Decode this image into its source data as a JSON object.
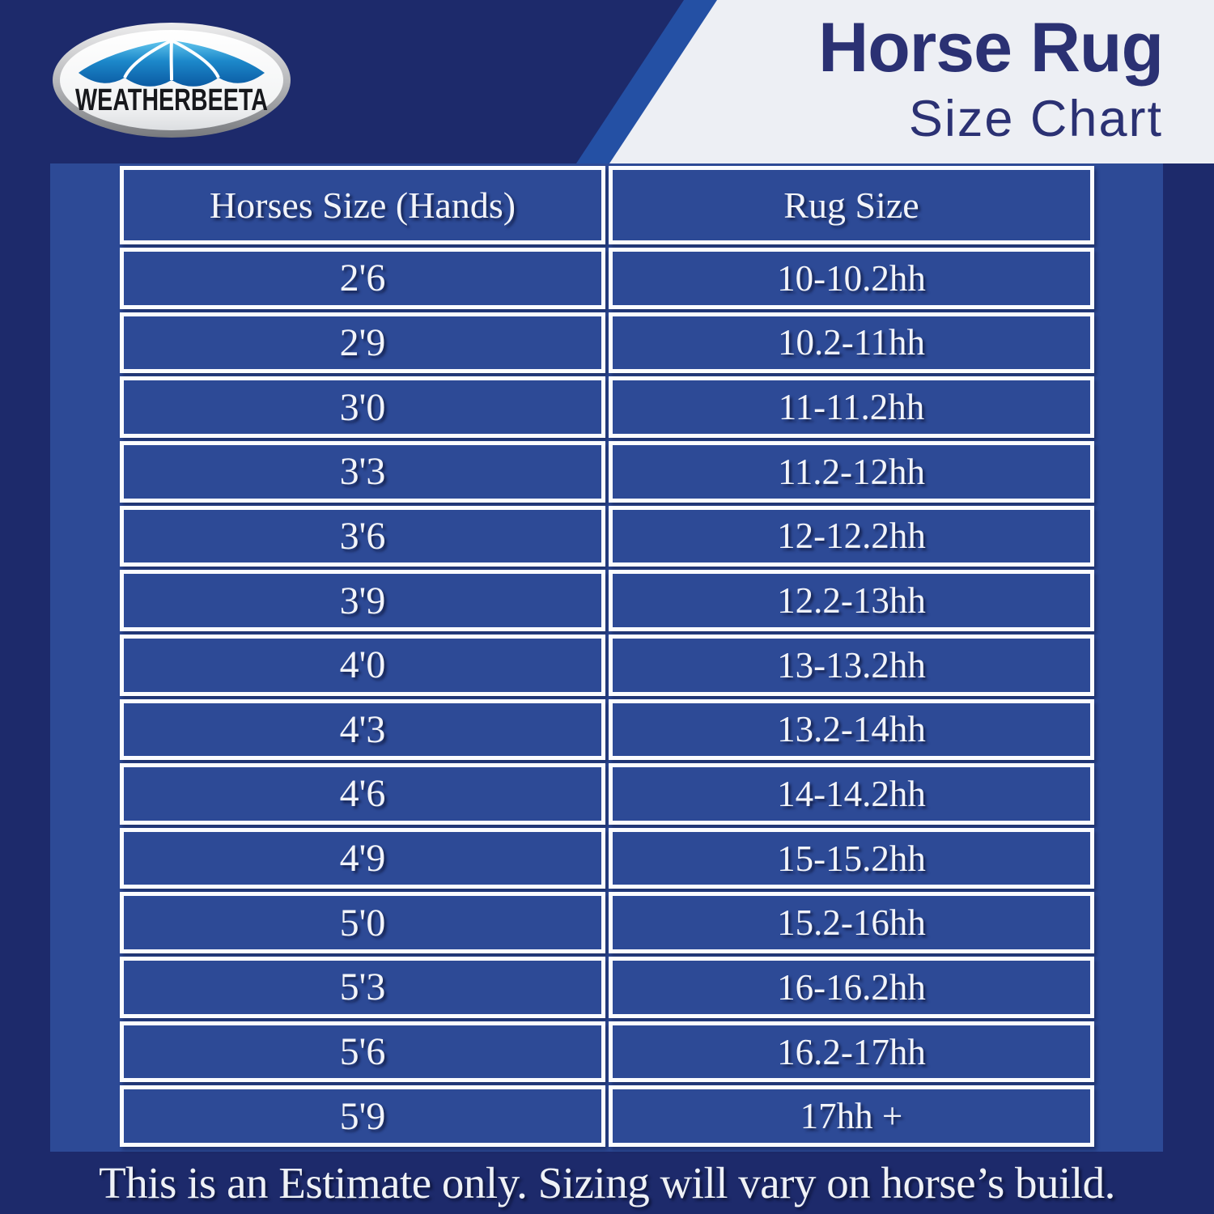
{
  "logo": {
    "brand_text": "WEATHERBEETA"
  },
  "header": {
    "title_line1": "Horse Rug",
    "title_line2": "Size Chart"
  },
  "chart_data": {
    "type": "table",
    "title": "Horse Rug Size Chart",
    "columns": [
      "Horses Size (Hands)",
      "Rug Size"
    ],
    "rows": [
      [
        "2'6",
        "10-10.2hh"
      ],
      [
        "2'9",
        "10.2-11hh"
      ],
      [
        "3'0",
        "11-11.2hh"
      ],
      [
        "3'3",
        "11.2-12hh"
      ],
      [
        "3'6",
        "12-12.2hh"
      ],
      [
        "3'9",
        "12.2-13hh"
      ],
      [
        "4'0",
        "13-13.2hh"
      ],
      [
        "4'3",
        "13.2-14hh"
      ],
      [
        "4'6",
        "14-14.2hh"
      ],
      [
        "4'9",
        "15-15.2hh"
      ],
      [
        "5'0",
        "15.2-16hh"
      ],
      [
        "5'3",
        "16-16.2hh"
      ],
      [
        "5'6",
        "16.2-17hh"
      ],
      [
        "5'9",
        "17hh +"
      ]
    ]
  },
  "footer": {
    "note": "This is an Estimate only. Sizing will vary on horse’s build."
  },
  "colors": {
    "base_navy": "#1d2a6b",
    "panel_blue": "#2d4a96",
    "accent_stripe_blue": "#2450a4",
    "header_offwhite": "#edeff4",
    "title_navy": "#2b3173",
    "grid_white": "#fbfcfe"
  }
}
